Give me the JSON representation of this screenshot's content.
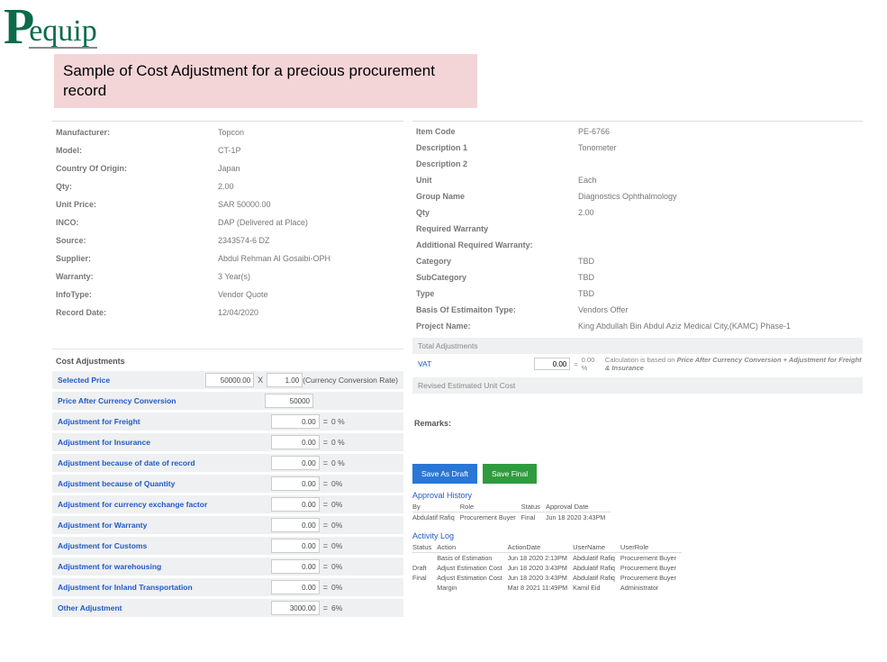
{
  "logo": {
    "letter": "P",
    "word": "equip"
  },
  "banner": "Sample of Cost Adjustment for a precious procurement record",
  "left_details": [
    {
      "label": "Manufacturer:",
      "value": "Topcon"
    },
    {
      "label": "Model:",
      "value": "CT-1P"
    },
    {
      "label": "Country Of Origin:",
      "value": "Japan"
    },
    {
      "label": "Qty:",
      "value": "2.00"
    },
    {
      "label": "Unit Price:",
      "value": "SAR  50000.00"
    },
    {
      "label": "INCO:",
      "value": "DAP (Delivered at Place)"
    },
    {
      "label": "Source:",
      "value": "2343574-6 DZ"
    },
    {
      "label": "Supplier:",
      "value": "Abdul Rehman Al Gosaibi-OPH"
    },
    {
      "label": "Warranty:",
      "value": "3 Year(s)"
    },
    {
      "label": "InfoType:",
      "value": "Vendor Quote"
    },
    {
      "label": "Record Date:",
      "value": "12/04/2020"
    }
  ],
  "right_details": [
    {
      "label": "Item Code",
      "value": "PE-6766"
    },
    {
      "label": "Description 1",
      "value": "Tonometer"
    },
    {
      "label": "Description 2",
      "value": ""
    },
    {
      "label": "Unit",
      "value": "Each"
    },
    {
      "label": "Group Name",
      "value": "Diagnostics Ophthalmology"
    },
    {
      "label": "Qty",
      "value": "2.00"
    },
    {
      "label": "Required Warranty",
      "value": ""
    },
    {
      "label": "Additional Required Warranty:",
      "value": ""
    },
    {
      "label": "Category",
      "value": "TBD"
    },
    {
      "label": "SubCategory",
      "value": "TBD"
    },
    {
      "label": "Type",
      "value": "TBD"
    },
    {
      "label": "Basis Of Estimaiton Type:",
      "value": "Vendors Offer"
    },
    {
      "label": "Project Name:",
      "value": "King Abdullah Bin Abdul Aziz Medical City,(KAMC) Phase-1"
    }
  ],
  "cost_adjustments_heading": "Cost Adjustments",
  "selected_price": {
    "label": "Selected Price",
    "value": "50000.00",
    "mult_label": "X",
    "rate": "1.00",
    "rate_label": "(Currency Conversion Rate)"
  },
  "price_after_conv": {
    "label": "Price After Currency Conversion",
    "value": "50000"
  },
  "adjustments": [
    {
      "label": "Adjustment for Freight",
      "value": "0.00",
      "pct": "0 %"
    },
    {
      "label": "Adjustment for Insurance",
      "value": "0.00",
      "pct": "0 %"
    },
    {
      "label": "Adjustment because of date of record",
      "value": "0.00",
      "pct": "0 %"
    },
    {
      "label": "Adjustment because of Quantity",
      "value": "0.00",
      "pct": "0%"
    },
    {
      "label": "Adjustment for currency exchange factor",
      "value": "0.00",
      "pct": "0%"
    },
    {
      "label": "Adjustment for Warranty",
      "value": "0.00",
      "pct": "0%"
    },
    {
      "label": "Adjustment for Customs",
      "value": "0.00",
      "pct": "0%"
    },
    {
      "label": "Adjustment for warehousing",
      "value": "0.00",
      "pct": "0%"
    },
    {
      "label": "Adjustment for Inland Transportation",
      "value": "0.00",
      "pct": "0%"
    },
    {
      "label": "Other Adjustment",
      "value": "3000.00",
      "pct": "6%"
    }
  ],
  "total_adjustments_label": "Total Adjustments",
  "vat": {
    "label": "VAT",
    "value": "0.00",
    "eq": "=",
    "pct": "0.00 %",
    "note_prefix": "Calculation is based on ",
    "note_em": "Price After Currency Conversion + Adjustment for Freight & Insurance"
  },
  "revised_label": "Revised Estimated Unit Cost",
  "remarks_label": "Remarks:",
  "buttons": {
    "draft": "Save As Draft",
    "final": "Save Final"
  },
  "approval_history": {
    "heading": "Approval History",
    "headers": [
      "By",
      "Role",
      "Status",
      "Approval Date"
    ],
    "rows": [
      [
        "Abdulatif Rafiq",
        "Procurement Buyer",
        "Final",
        "Jun 18 2020 3:43PM"
      ]
    ]
  },
  "activity_log": {
    "heading": "Activity Log",
    "headers": [
      "Status",
      "Action",
      "ActionDate",
      "UserName",
      "UserRole"
    ],
    "rows": [
      [
        "",
        "Basis of Estimation",
        "Jun 18 2020 2:13PM",
        "Abdulatif Rafiq",
        "Procurement Buyer"
      ],
      [
        "Draft",
        "Adjust Estimation Cost",
        "Jun 18 2020 3:43PM",
        "Abdulatif Rafiq",
        "Procurement Buyer"
      ],
      [
        "Final",
        "Adjust Estimation Cost",
        "Jun 18 2020 3:43PM",
        "Abdulatif Rafiq",
        "Procurement Buyer"
      ],
      [
        "",
        "Margin",
        "Mar 8 2021 11:49PM",
        "Kamil Eid",
        "Administrator"
      ]
    ]
  },
  "colors": {
    "banner_bg": "#f4d5d7",
    "link": "#2159c7",
    "row_bg": "#eef0f1",
    "btn_blue": "#2b77d6",
    "btn_green": "#2e9c3e"
  }
}
